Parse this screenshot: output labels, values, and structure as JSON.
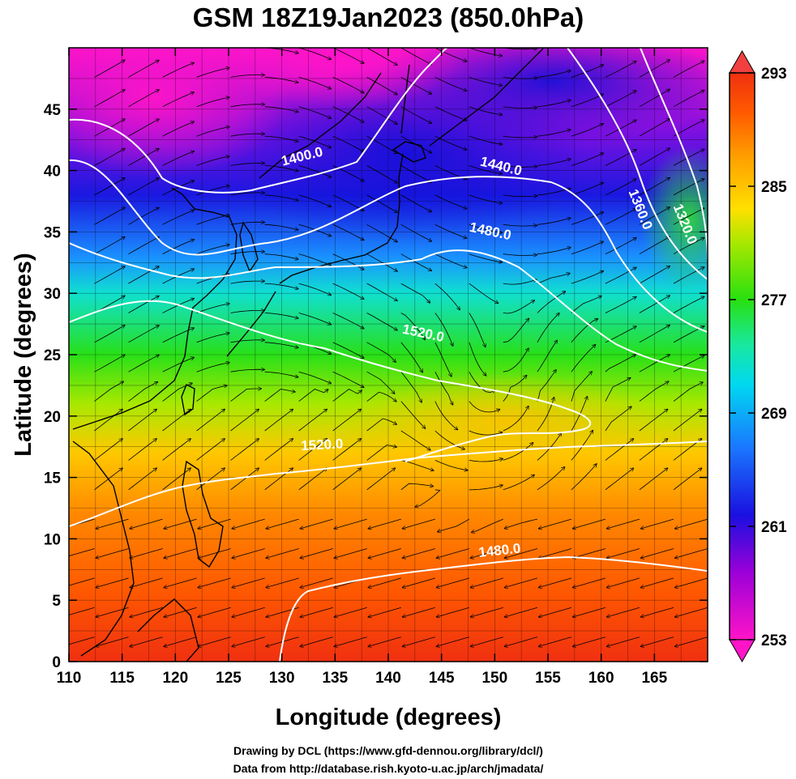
{
  "title": "GSM 18Z19Jan2023 (850.0hPa)",
  "x_axis": {
    "label": "Longitude (degrees)",
    "range": [
      110,
      170
    ],
    "ticks": [
      110,
      115,
      120,
      125,
      130,
      135,
      140,
      145,
      150,
      155,
      160,
      165
    ]
  },
  "y_axis": {
    "label": "Latitude  (degrees)",
    "range": [
      0,
      50
    ],
    "ticks": [
      0,
      5,
      10,
      15,
      20,
      25,
      30,
      35,
      40,
      45
    ]
  },
  "colorbar": {
    "range": [
      253,
      293
    ],
    "ticks": [
      253,
      261,
      269,
      277,
      285,
      293
    ],
    "colors": [
      "#ff14c8",
      "#9a00d8",
      "#1a10e0",
      "#1a78ff",
      "#00d8f0",
      "#18e8a0",
      "#28e010",
      "#a8e800",
      "#ffe000",
      "#ffa000",
      "#ff5a00",
      "#f03010"
    ]
  },
  "contours": [
    {
      "label": "1400.0",
      "lon": 132,
      "lat": 40.8,
      "angle": -14
    },
    {
      "label": "1440.0",
      "lon": 150.5,
      "lat": 40,
      "angle": 14
    },
    {
      "label": "1480.0",
      "lon": 149.5,
      "lat": 34.7,
      "angle": 12
    },
    {
      "label": "1360.0",
      "lon": 163.3,
      "lat": 36.7,
      "angle": 68
    },
    {
      "label": "1320.0",
      "lon": 167.5,
      "lat": 35.5,
      "angle": 68
    },
    {
      "label": "1520.0",
      "lon": 143.2,
      "lat": 26.4,
      "angle": 12
    },
    {
      "label": "1520.0",
      "lon": 133.8,
      "lat": 17.3,
      "angle": -3
    },
    {
      "label": "1480.0",
      "lon": 150.5,
      "lat": 8.7,
      "angle": -6
    }
  ],
  "credits": [
    "Drawing by DCL (https://www.gfd-dennou.org/library/dcl/)",
    "Data from http://database.rish.kyoto-u.ac.jp/arch/jmadata/"
  ]
}
